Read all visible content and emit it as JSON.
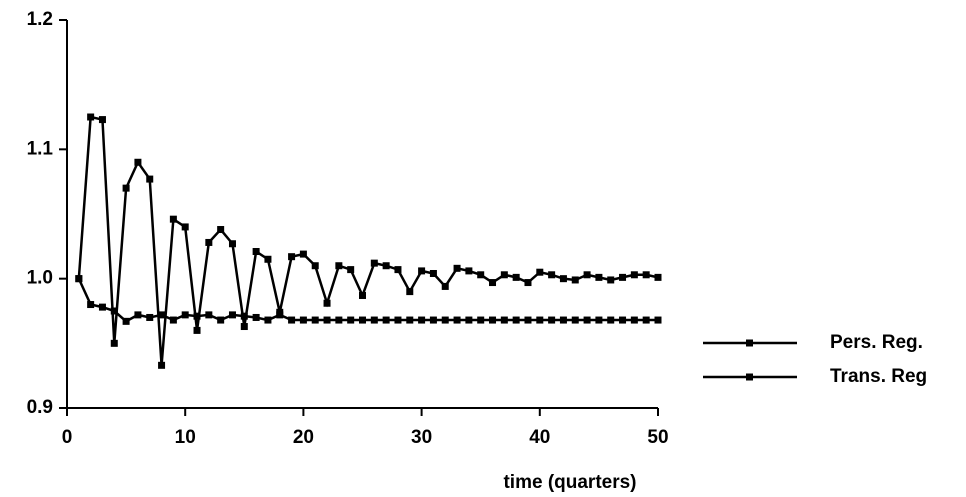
{
  "chart_data": {
    "type": "line",
    "x_label": "time  (quarters)",
    "x": [
      1,
      2,
      3,
      4,
      5,
      6,
      7,
      8,
      9,
      10,
      11,
      12,
      13,
      14,
      15,
      16,
      17,
      18,
      19,
      20,
      21,
      22,
      23,
      24,
      25,
      26,
      27,
      28,
      29,
      30,
      31,
      32,
      33,
      34,
      35,
      36,
      37,
      38,
      39,
      40,
      41,
      42,
      43,
      44,
      45,
      46,
      47,
      48,
      49,
      50
    ],
    "series": [
      {
        "name": "Pers. Reg.",
        "color": "#000000",
        "values": [
          1.0,
          1.125,
          1.123,
          0.95,
          1.07,
          1.09,
          1.077,
          0.933,
          1.046,
          1.04,
          0.96,
          1.028,
          1.038,
          1.027,
          0.963,
          1.021,
          1.015,
          0.974,
          1.017,
          1.019,
          1.01,
          0.981,
          1.01,
          1.007,
          0.987,
          1.012,
          1.01,
          1.007,
          0.99,
          1.006,
          1.004,
          0.994,
          1.008,
          1.006,
          1.003,
          0.997,
          1.003,
          1.001,
          0.997,
          1.005,
          1.003,
          1.0,
          0.999,
          1.003,
          1.001,
          0.999,
          1.001,
          1.003,
          1.003,
          1.001
        ]
      },
      {
        "name": "Trans. Reg",
        "color": "#000000",
        "values": [
          1.0,
          0.98,
          0.978,
          0.975,
          0.967,
          0.972,
          0.97,
          0.972,
          0.968,
          0.972,
          0.971,
          0.972,
          0.968,
          0.972,
          0.971,
          0.97,
          0.968,
          0.972,
          0.968,
          0.968,
          0.968,
          0.968,
          0.968,
          0.968,
          0.968,
          0.968,
          0.968,
          0.968,
          0.968,
          0.968,
          0.968,
          0.968,
          0.968,
          0.968,
          0.968,
          0.968,
          0.968,
          0.968,
          0.968,
          0.968,
          0.968,
          0.968,
          0.968,
          0.968,
          0.968,
          0.968,
          0.968,
          0.968,
          0.968,
          0.968
        ]
      }
    ],
    "xlim": [
      0,
      50
    ],
    "xticks": [
      0,
      10,
      20,
      30,
      40,
      50
    ],
    "ylim": [
      0.9,
      1.2
    ],
    "yticks": [
      0.9,
      {
        "value": 1,
        "label": "1.0"
      },
      1.1,
      1.2
    ]
  }
}
